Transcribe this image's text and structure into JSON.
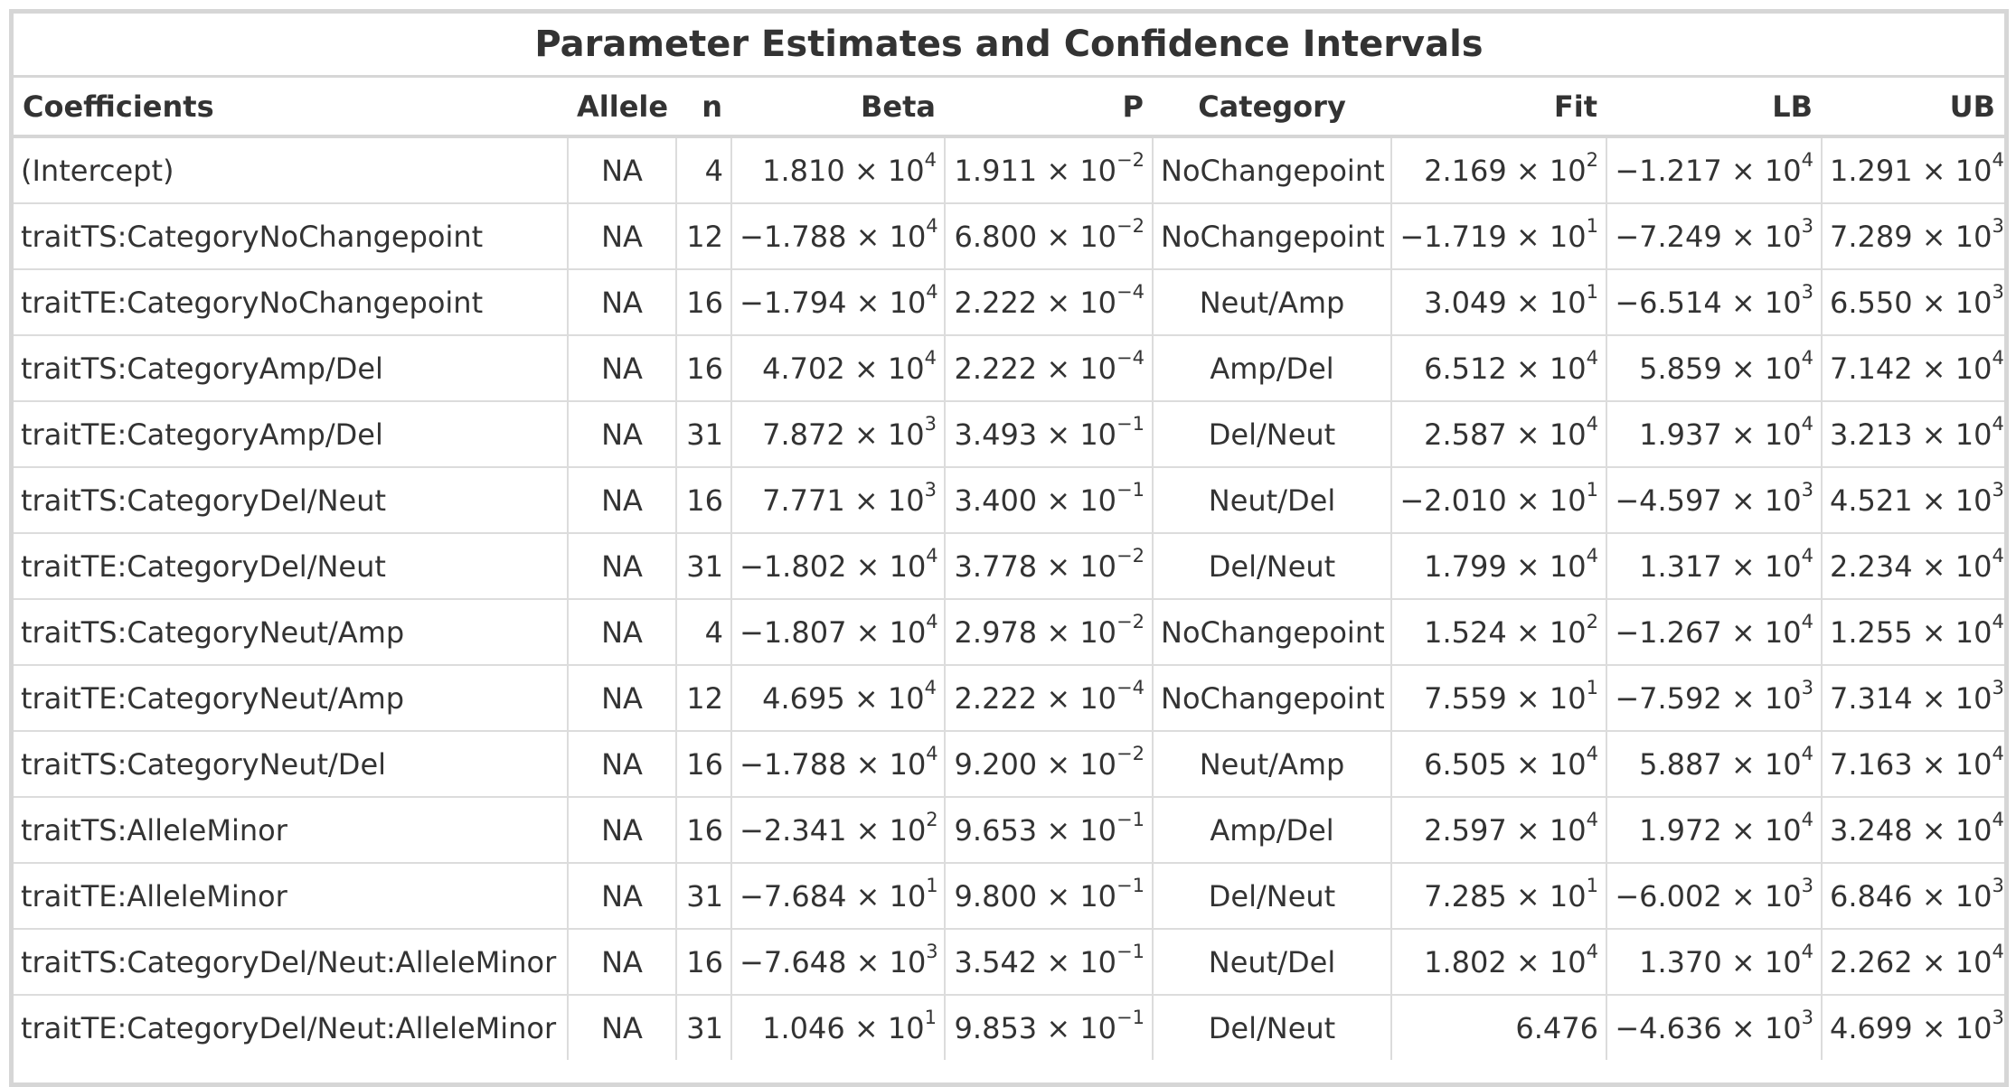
{
  "chart_data": {
    "type": "table",
    "title": "Parameter Estimates and Confidence Intervals",
    "columns": [
      "Coefficients",
      "Allele",
      "n",
      "Beta",
      "P",
      "Category",
      "Fit",
      "LB",
      "UB"
    ],
    "rows": [
      [
        "(Intercept)",
        "NA",
        "4",
        "1.810 × 10^4",
        "1.911 × 10^−2",
        "NoChangepoint",
        "2.169 × 10^2",
        "−1.217 × 10^4",
        "1.291 × 10^4"
      ],
      [
        "traitTS:CategoryNoChangepoint",
        "NA",
        "12",
        "−1.788 × 10^4",
        "6.800 × 10^−2",
        "NoChangepoint",
        "−1.719 × 10^1",
        "−7.249 × 10^3",
        "7.289 × 10^3"
      ],
      [
        "traitTE:CategoryNoChangepoint",
        "NA",
        "16",
        "−1.794 × 10^4",
        "2.222 × 10^−4",
        "Neut/Amp",
        "3.049 × 10^1",
        "−6.514 × 10^3",
        "6.550 × 10^3"
      ],
      [
        "traitTS:CategoryAmp/Del",
        "NA",
        "16",
        "4.702 × 10^4",
        "2.222 × 10^−4",
        "Amp/Del",
        "6.512 × 10^4",
        "5.859 × 10^4",
        "7.142 × 10^4"
      ],
      [
        "traitTE:CategoryAmp/Del",
        "NA",
        "31",
        "7.872 × 10^3",
        "3.493 × 10^−1",
        "Del/Neut",
        "2.587 × 10^4",
        "1.937 × 10^4",
        "3.213 × 10^4"
      ],
      [
        "traitTS:CategoryDel/Neut",
        "NA",
        "16",
        "7.771 × 10^3",
        "3.400 × 10^−1",
        "Neut/Del",
        "−2.010 × 10^1",
        "−4.597 × 10^3",
        "4.521 × 10^3"
      ],
      [
        "traitTE:CategoryDel/Neut",
        "NA",
        "31",
        "−1.802 × 10^4",
        "3.778 × 10^−2",
        "Del/Neut",
        "1.799 × 10^4",
        "1.317 × 10^4",
        "2.234 × 10^4"
      ],
      [
        "traitTS:CategoryNeut/Amp",
        "NA",
        "4",
        "−1.807 × 10^4",
        "2.978 × 10^−2",
        "NoChangepoint",
        "1.524 × 10^2",
        "−1.267 × 10^4",
        "1.255 × 10^4"
      ],
      [
        "traitTE:CategoryNeut/Amp",
        "NA",
        "12",
        "4.695 × 10^4",
        "2.222 × 10^−4",
        "NoChangepoint",
        "7.559 × 10^1",
        "−7.592 × 10^3",
        "7.314 × 10^3"
      ],
      [
        "traitTS:CategoryNeut/Del",
        "NA",
        "16",
        "−1.788 × 10^4",
        "9.200 × 10^−2",
        "Neut/Amp",
        "6.505 × 10^4",
        "5.887 × 10^4",
        "7.163 × 10^4"
      ],
      [
        "traitTS:AlleleMinor",
        "NA",
        "16",
        "−2.341 × 10^2",
        "9.653 × 10^−1",
        "Amp/Del",
        "2.597 × 10^4",
        "1.972 × 10^4",
        "3.248 × 10^4"
      ],
      [
        "traitTE:AlleleMinor",
        "NA",
        "31",
        "−7.684 × 10^1",
        "9.800 × 10^−1",
        "Del/Neut",
        "7.285 × 10^1",
        "−6.002 × 10^3",
        "6.846 × 10^3"
      ],
      [
        "traitTS:CategoryDel/Neut:AlleleMinor",
        "NA",
        "16",
        "−7.648 × 10^3",
        "3.542 × 10^−1",
        "Neut/Del",
        "1.802 × 10^4",
        "1.370 × 10^4",
        "2.262 × 10^4"
      ],
      [
        "traitTE:CategoryDel/Neut:AlleleMinor",
        "NA",
        "31",
        "1.046 × 10^1",
        "9.853 × 10^−1",
        "Del/Neut",
        "6.476",
        "−4.636 × 10^3",
        "4.699 × 10^3"
      ]
    ]
  },
  "colors": {
    "text": "#333333",
    "grid": "#dcdcdc",
    "frame": "#d6d6d6",
    "background": "#ffffff"
  }
}
